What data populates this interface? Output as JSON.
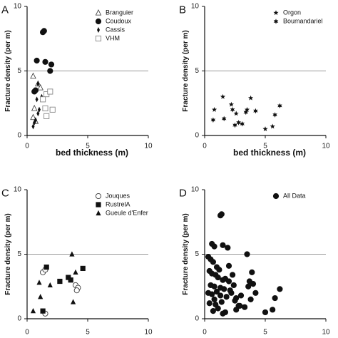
{
  "chart_data": [
    {
      "panel_label": "A",
      "type": "scatter",
      "xlabel": "bed thickness (m)",
      "ylabel": "Fracture density (per m)",
      "xlim": [
        0,
        10
      ],
      "ylim": [
        0,
        10
      ],
      "x_ticks": [
        "0",
        "5",
        "10"
      ],
      "y_ticks": [
        "0",
        "5",
        "10"
      ],
      "reference_line_y": 5,
      "legend_position": "top-right",
      "series": [
        {
          "name": "Branguier",
          "marker": "triangle-open",
          "x": [
            0.5,
            0.6,
            0.5,
            0.7,
            0.9,
            1.1
          ],
          "y": [
            4.6,
            2.1,
            1.4,
            1.1,
            4.0,
            3.7
          ]
        },
        {
          "name": "Coudoux",
          "marker": "circle-filled",
          "x": [
            1.3,
            1.4,
            0.8,
            1.5,
            2.0,
            1.9,
            0.6,
            0.7
          ],
          "y": [
            8.0,
            8.1,
            5.8,
            5.7,
            5.5,
            5.0,
            3.4,
            3.5
          ]
        },
        {
          "name": "Cassis",
          "marker": "diamond-filled",
          "x": [
            0.5,
            0.7,
            0.9,
            1.0,
            0.8,
            1.2,
            0.6,
            0.9
          ],
          "y": [
            0.7,
            1.2,
            1.7,
            2.0,
            2.8,
            3.0,
            1.0,
            4.0
          ]
        },
        {
          "name": "VHM",
          "marker": "square-open",
          "x": [
            1.6,
            1.9,
            1.5,
            2.1,
            1.6,
            1.3
          ],
          "y": [
            3.2,
            3.4,
            2.1,
            2.0,
            1.5,
            2.8
          ]
        }
      ]
    },
    {
      "panel_label": "B",
      "type": "scatter",
      "xlabel": "bed thickness (m)",
      "ylabel": "Fracture density (per m)",
      "xlim": [
        0,
        10
      ],
      "ylim": [
        0,
        10
      ],
      "x_ticks": [
        "0",
        "5",
        "10"
      ],
      "y_ticks": [
        "0",
        "5",
        "10"
      ],
      "reference_line_y": 5,
      "legend_position": "top-right",
      "series": [
        {
          "name": "Orgon",
          "marker": "star5",
          "x": [
            0.8,
            1.5,
            2.2,
            2.6,
            3.5,
            3.8,
            5.0,
            5.6
          ],
          "y": [
            2.0,
            3.0,
            2.4,
            1.7,
            2.0,
            2.9,
            0.5,
            0.7
          ]
        },
        {
          "name": "Boumandariel",
          "marker": "star6",
          "x": [
            0.7,
            1.6,
            2.3,
            2.5,
            2.8,
            3.1,
            3.4,
            4.2,
            5.8,
            6.2
          ],
          "y": [
            1.2,
            1.3,
            2.0,
            0.8,
            1.0,
            0.9,
            1.8,
            1.9,
            1.6,
            2.3
          ]
        }
      ]
    },
    {
      "panel_label": "C",
      "type": "scatter",
      "xlabel": "",
      "ylabel": "Fracture density (per m)",
      "xlim": [
        0,
        10
      ],
      "ylim": [
        0,
        10
      ],
      "x_ticks": [
        "0",
        "5",
        "10"
      ],
      "y_ticks": [
        "0",
        "5",
        "10"
      ],
      "reference_line_y": 5,
      "legend_position": "top-right",
      "series": [
        {
          "name": "Jouques",
          "marker": "circle-open",
          "x": [
            1.3,
            1.5,
            4.0,
            4.2,
            4.1,
            1.5
          ],
          "y": [
            3.6,
            3.8,
            2.6,
            2.4,
            2.2,
            0.4
          ]
        },
        {
          "name": "RustrelA",
          "marker": "square-filled",
          "x": [
            1.6,
            2.7,
            3.4,
            3.6,
            4.6,
            1.3
          ],
          "y": [
            4.0,
            2.9,
            3.2,
            3.0,
            3.9,
            0.6
          ]
        },
        {
          "name": "Gueule d'Enfer",
          "marker": "triangle-filled",
          "x": [
            0.5,
            1.0,
            1.1,
            1.9,
            3.7,
            4.0,
            3.8
          ],
          "y": [
            0.6,
            2.8,
            1.7,
            2.6,
            5.0,
            3.6,
            1.3
          ]
        }
      ]
    },
    {
      "panel_label": "D",
      "type": "scatter",
      "xlabel": "",
      "ylabel": "Fracture density (per m)",
      "xlim": [
        0,
        10
      ],
      "ylim": [
        0,
        10
      ],
      "x_ticks": [
        "0",
        "5",
        "10"
      ],
      "y_ticks": [
        "0",
        "5",
        "10"
      ],
      "reference_line_y": 5,
      "legend_position": "top-right",
      "series": [
        {
          "name": "All Data",
          "marker": "circle-filled",
          "x": [
            1.3,
            1.4,
            0.6,
            0.8,
            1.5,
            1.9,
            0.3,
            0.5,
            0.7,
            1.0,
            1.2,
            0.4,
            0.6,
            0.9,
            1.1,
            1.5,
            1.7,
            2.0,
            0.5,
            0.8,
            1.3,
            1.6,
            2.1,
            2.4,
            0.3,
            0.6,
            1.0,
            1.3,
            1.8,
            2.2,
            2.6,
            3.0,
            0.4,
            0.9,
            1.4,
            2.5,
            2.8,
            3.3,
            3.7,
            4.0,
            3.6,
            3.5,
            2.0,
            2.3,
            0.7,
            1.1,
            1.7,
            3.8,
            4.2,
            5.0,
            5.6,
            5.8,
            6.2,
            2.9,
            1.5,
            2.6,
            3.9,
            0.8
          ],
          "y": [
            8.0,
            8.1,
            5.8,
            5.6,
            5.7,
            5.5,
            4.8,
            4.6,
            4.4,
            4.0,
            3.8,
            3.7,
            3.5,
            3.4,
            3.2,
            3.0,
            3.1,
            2.9,
            2.6,
            2.5,
            2.4,
            2.3,
            2.2,
            2.6,
            2.0,
            1.9,
            2.1,
            1.8,
            1.7,
            2.0,
            1.6,
            1.8,
            1.2,
            1.1,
            1.3,
            1.4,
            1.0,
            0.9,
            2.9,
            2.7,
            2.5,
            5.0,
            4.1,
            3.4,
            0.6,
            0.8,
            0.5,
            1.5,
            2.0,
            0.5,
            0.7,
            1.6,
            2.3,
            1.0,
            0.4,
            0.7,
            3.6,
            1.5
          ]
        }
      ]
    }
  ]
}
